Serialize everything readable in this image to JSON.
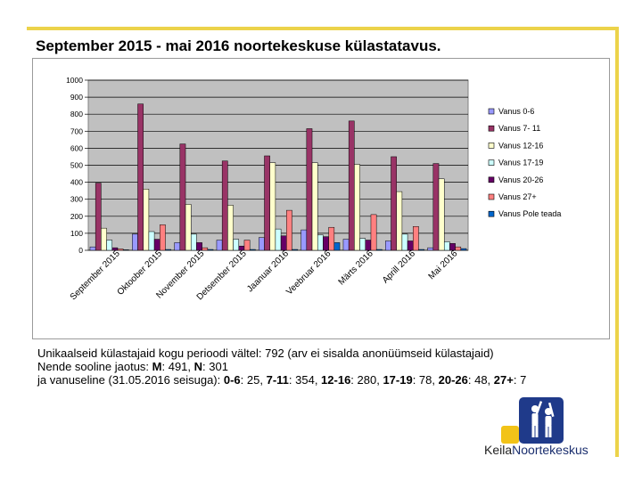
{
  "title": "September 2015 - mai 2016 noortekeskuse külastatavus.",
  "chart_data": {
    "type": "bar",
    "title": "",
    "categories": [
      "September 2015",
      "Oktoober 2015",
      "November 2015",
      "Detsember 2015",
      "Jaanuar 2016",
      "Veebruar 2016",
      "Märts 2016",
      "Aprill 2016",
      "Mai 2016"
    ],
    "ylim": [
      0,
      1000
    ],
    "yticks": [
      0,
      100,
      200,
      300,
      400,
      500,
      600,
      700,
      800,
      900,
      1000
    ],
    "grid": true,
    "legend_position": "right",
    "series": [
      {
        "name": "Vanus 0-6",
        "color": "#9999ff",
        "values": [
          20,
          95,
          45,
          60,
          75,
          120,
          65,
          55,
          15
        ]
      },
      {
        "name": "Vanus 7- 11",
        "color": "#993366",
        "values": [
          395,
          860,
          625,
          525,
          555,
          715,
          760,
          550,
          510
        ]
      },
      {
        "name": "Vanus 12-16",
        "color": "#ffffcc",
        "values": [
          130,
          360,
          270,
          265,
          515,
          515,
          505,
          345,
          420
        ]
      },
      {
        "name": "Vanus 17-19",
        "color": "#ccffff",
        "values": [
          60,
          110,
          95,
          65,
          125,
          90,
          70,
          95,
          50
        ]
      },
      {
        "name": "Vanus 20-26",
        "color": "#660066",
        "values": [
          15,
          65,
          45,
          25,
          85,
          80,
          60,
          55,
          40
        ]
      },
      {
        "name": "Vanus 27+",
        "color": "#ff8080",
        "values": [
          8,
          150,
          15,
          60,
          235,
          135,
          210,
          140,
          20
        ]
      },
      {
        "name": "Vanus Pole teada",
        "color": "#0066cc",
        "values": [
          3,
          5,
          5,
          5,
          5,
          45,
          5,
          5,
          10
        ]
      }
    ]
  },
  "summary": {
    "line1": "Unikaalseid külastajaid kogu perioodi vältel: 792 (arv ei sisalda anonüümseid külastajaid)",
    "line2_prefix": "Nende sooline jaotus: ",
    "m_label": "M",
    "m_value": ": 491, ",
    "n_label": "N",
    "n_value": ": 301",
    "line3_prefix": "ja vanuseline (31.05.2016 seisuga): ",
    "age_groups": [
      {
        "label": "0-6",
        "value": ": 25, "
      },
      {
        "label": "7-11",
        "value": ": 354, "
      },
      {
        "label": "12-16",
        "value": ": 280, "
      },
      {
        "label": "17-19",
        "value": ": 78, "
      },
      {
        "label": "20-26",
        "value": ": 48, "
      },
      {
        "label": "27+",
        "value": ": 7"
      }
    ]
  },
  "logo": {
    "word1": "Keila",
    "word2": "Noortekeskus",
    "colors": {
      "blue": "#1f3a8a",
      "yellow": "#f2c318"
    }
  }
}
